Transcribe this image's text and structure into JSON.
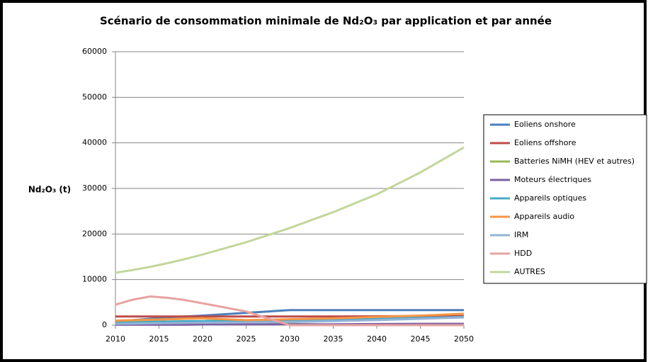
{
  "chart_data": {
    "type": "line",
    "title": "Scénario de consommation minimale de Nd₂O₃ par application et par année",
    "y_label": "Nd₂O₃ (t)",
    "x": [
      2010,
      2012,
      2014,
      2016,
      2018,
      2020,
      2025,
      2030,
      2035,
      2040,
      2045,
      2050
    ],
    "xlim": [
      2010,
      2050
    ],
    "xticks": [
      2010,
      2015,
      2020,
      2025,
      2030,
      2035,
      2040,
      2045,
      2050
    ],
    "ylim": [
      0,
      60000
    ],
    "yticks": [
      0,
      10000,
      20000,
      30000,
      40000,
      50000,
      60000
    ],
    "grid": true,
    "legend": "right",
    "series": [
      {
        "name": "Eoliens onshore",
        "color": "#4a7ebb",
        "values": [
          800,
          1100,
          1400,
          1700,
          1900,
          2100,
          2700,
          3300,
          3300,
          3300,
          3300,
          3300
        ]
      },
      {
        "name": "Eoliens offshore",
        "color": "#be4b48",
        "values": [
          1900,
          1900,
          1900,
          1900,
          1900,
          1900,
          1900,
          1900,
          1900,
          1950,
          2000,
          2000
        ]
      },
      {
        "name": "Batteries NiMH (HEV  et autres)",
        "color": "#98b954",
        "values": [
          500,
          800,
          1100,
          1300,
          1400,
          1500,
          1000,
          300,
          100,
          0,
          0,
          0
        ]
      },
      {
        "name": "Moteurs électriques",
        "color": "#7d60a0",
        "values": [
          100,
          100,
          100,
          100,
          100,
          150,
          150,
          200,
          200,
          250,
          300,
          300
        ]
      },
      {
        "name": "Appareils optiques",
        "color": "#46aac5",
        "values": [
          500,
          600,
          700,
          800,
          850,
          900,
          1000,
          1100,
          1300,
          1400,
          1600,
          1800
        ]
      },
      {
        "name": "Appareils audio",
        "color": "#f79646",
        "values": [
          1000,
          1100,
          1200,
          1300,
          1400,
          1500,
          1100,
          1300,
          1500,
          1800,
          2100,
          2500
        ]
      },
      {
        "name": "IRM",
        "color": "#95b3d7",
        "values": [
          300,
          350,
          400,
          450,
          500,
          550,
          600,
          700,
          900,
          1100,
          1400,
          1700
        ]
      },
      {
        "name": "HDD",
        "color": "#e6a3a2",
        "values": [
          4500,
          5600,
          6300,
          6000,
          5500,
          4800,
          3000,
          0,
          0,
          0,
          0,
          0
        ]
      },
      {
        "name": "AUTRES",
        "color": "#c3d69b",
        "values": [
          11500,
          12100,
          12800,
          13600,
          14500,
          15500,
          18200,
          21300,
          24800,
          28700,
          33500,
          39000
        ]
      }
    ]
  }
}
